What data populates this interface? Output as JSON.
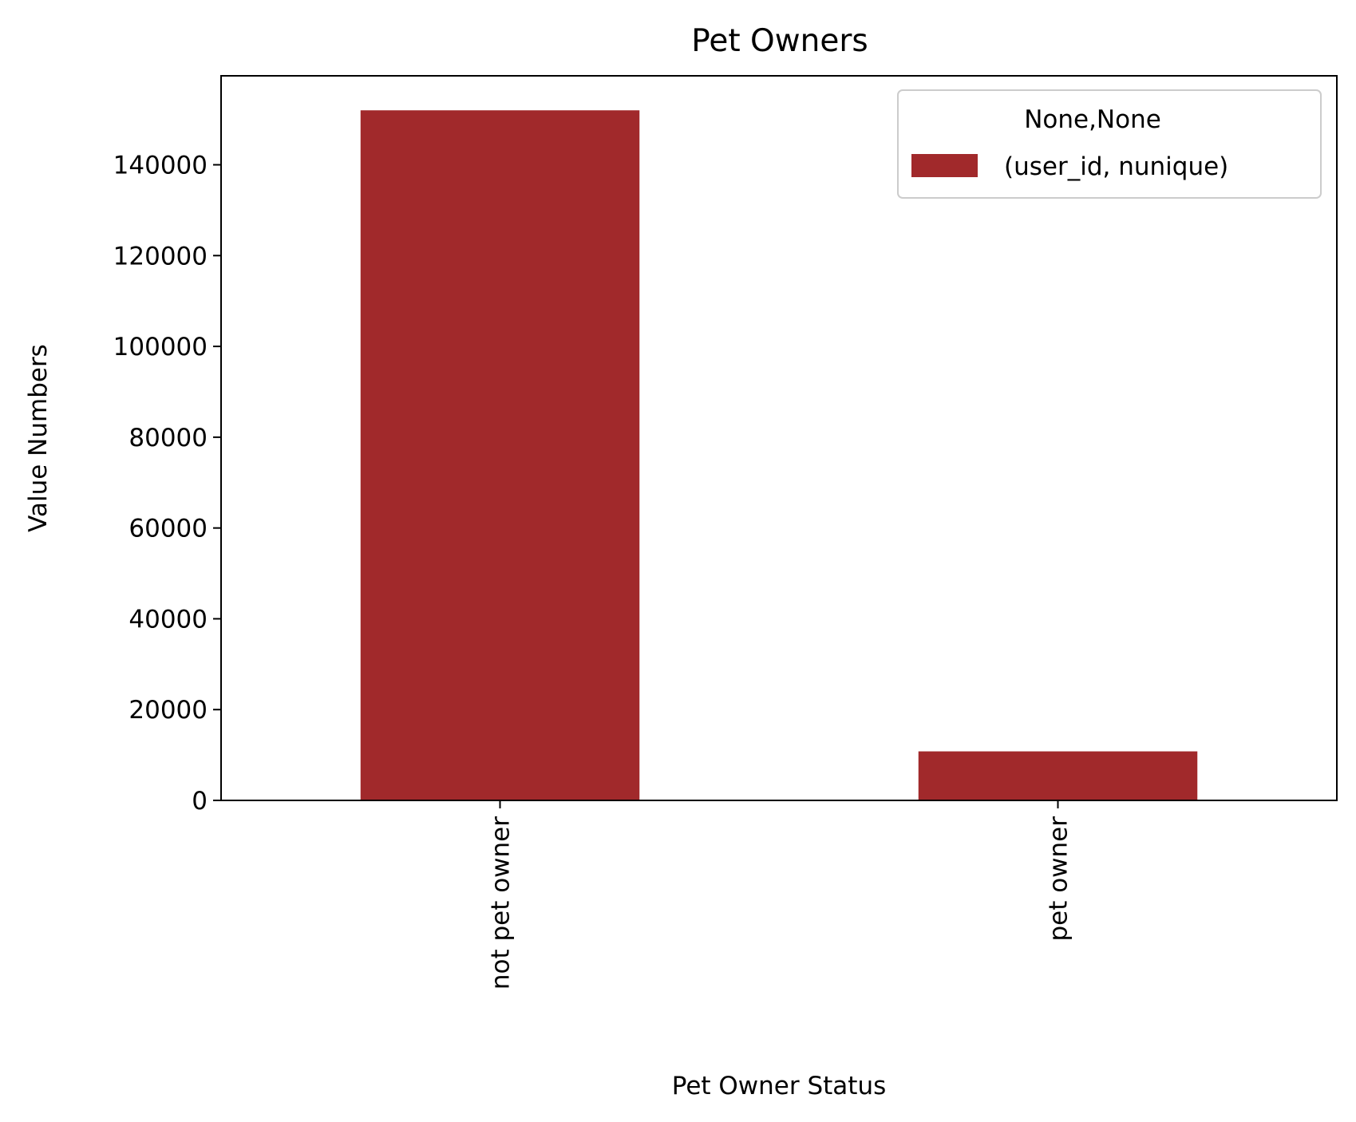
{
  "chart_data": {
    "type": "bar",
    "title": "Pet Owners",
    "xlabel": "Pet Owner Status",
    "ylabel": "Value Numbers",
    "categories": [
      "not pet owner",
      "pet owner"
    ],
    "series": [
      {
        "name": "(user_id, nunique)",
        "values": [
          152000,
          10800
        ],
        "color": "#a1292b"
      }
    ],
    "yticks": [
      0,
      20000,
      40000,
      60000,
      80000,
      100000,
      120000,
      140000
    ],
    "ylim": [
      0,
      159600
    ],
    "legend": {
      "title": "None,None",
      "position": "top-right"
    },
    "grid": false
  }
}
